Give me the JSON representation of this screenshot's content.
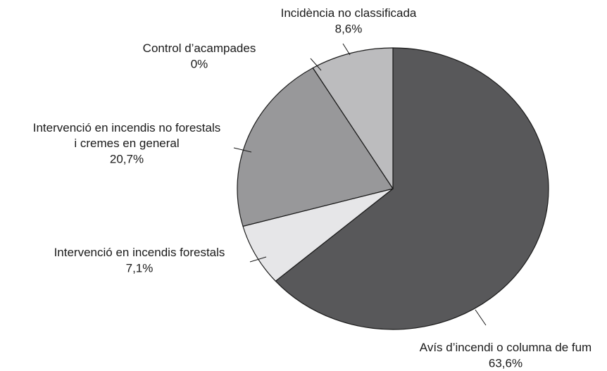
{
  "chart_data": {
    "type": "pie",
    "categories": [
      "Avís d’incendi o columna de fum",
      "Intervenció en incendis forestals",
      "Intervenció en incendis no forestals\ni cremes en general",
      "Control d’acampades",
      "Incidència no classificada"
    ],
    "values": [
      63.6,
      7.1,
      20.7,
      0,
      8.6
    ],
    "value_labels": [
      "63,6%",
      "7,1%",
      "20,7%",
      "0%",
      "8,6%"
    ],
    "colors": [
      "#58585a",
      "#e6e6e8",
      "#98989a",
      "#b4b4b6",
      "#bcbcbe"
    ]
  }
}
